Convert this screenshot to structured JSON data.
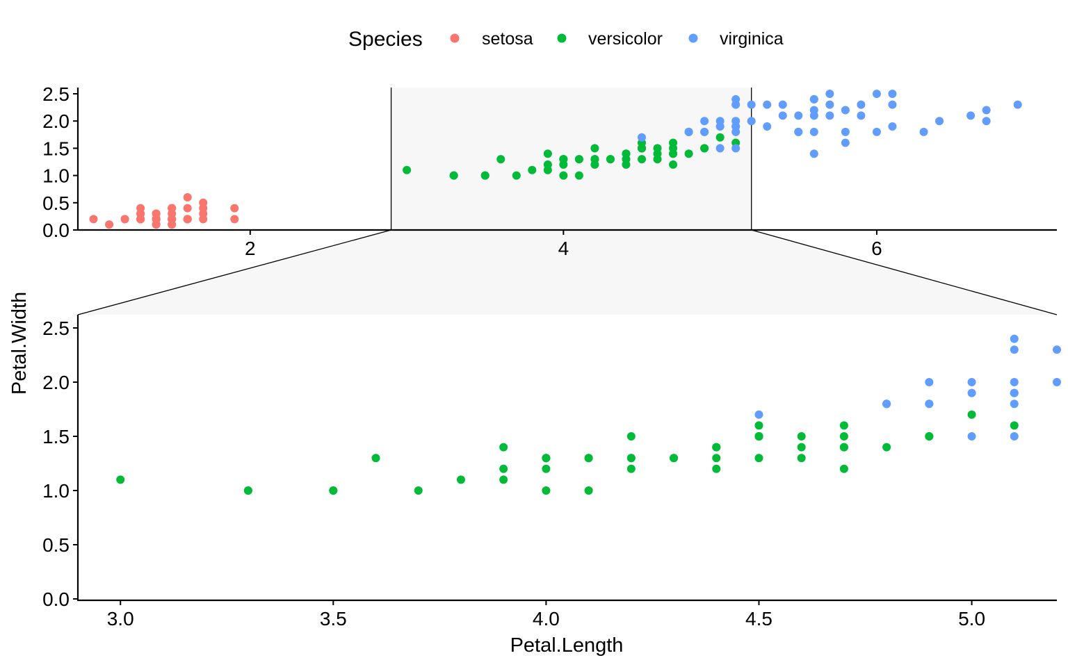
{
  "legend": {
    "title": "Species",
    "position": "top",
    "items": [
      {
        "label": "setosa",
        "color": "#F8766D"
      },
      {
        "label": "versicolor",
        "color": "#00BA38"
      },
      {
        "label": "virginica",
        "color": "#619CFF"
      }
    ]
  },
  "chart_data": {
    "type": "scatter",
    "title": "",
    "xlabel": "Petal.Length",
    "ylabel": "Petal.Width",
    "grid": false,
    "zoom_region": {
      "xlim": [
        2.9,
        5.2
      ]
    },
    "overview": {
      "xlim": [
        0.9,
        7.15
      ],
      "ylim": [
        0,
        2.5
      ],
      "xticks": [
        2,
        4,
        6
      ],
      "yticks": [
        "0.0",
        "0.5",
        "1.0",
        "1.5",
        "2.0",
        "2.5"
      ]
    },
    "detail": {
      "xlim": [
        2.9,
        5.2
      ],
      "ylim": [
        0,
        2.5
      ],
      "xticks": [
        "3.0",
        "3.5",
        "4.0",
        "4.5",
        "5.0"
      ],
      "yticks": [
        "0.0",
        "0.5",
        "1.0",
        "1.5",
        "2.0",
        "2.5"
      ]
    },
    "series": [
      {
        "name": "setosa",
        "color": "#F8766D",
        "points": [
          [
            1.4,
            0.2
          ],
          [
            1.4,
            0.2
          ],
          [
            1.3,
            0.2
          ],
          [
            1.5,
            0.2
          ],
          [
            1.4,
            0.2
          ],
          [
            1.7,
            0.4
          ],
          [
            1.4,
            0.3
          ],
          [
            1.5,
            0.2
          ],
          [
            1.4,
            0.2
          ],
          [
            1.5,
            0.1
          ],
          [
            1.5,
            0.2
          ],
          [
            1.6,
            0.2
          ],
          [
            1.4,
            0.1
          ],
          [
            1.1,
            0.1
          ],
          [
            1.2,
            0.2
          ],
          [
            1.5,
            0.4
          ],
          [
            1.3,
            0.4
          ],
          [
            1.4,
            0.3
          ],
          [
            1.7,
            0.3
          ],
          [
            1.5,
            0.3
          ],
          [
            1.7,
            0.2
          ],
          [
            1.5,
            0.4
          ],
          [
            1.0,
            0.2
          ],
          [
            1.7,
            0.5
          ],
          [
            1.9,
            0.2
          ],
          [
            1.6,
            0.2
          ],
          [
            1.6,
            0.4
          ],
          [
            1.5,
            0.2
          ],
          [
            1.4,
            0.2
          ],
          [
            1.6,
            0.2
          ],
          [
            1.6,
            0.2
          ],
          [
            1.5,
            0.4
          ],
          [
            1.5,
            0.1
          ],
          [
            1.4,
            0.2
          ],
          [
            1.5,
            0.2
          ],
          [
            1.2,
            0.2
          ],
          [
            1.3,
            0.2
          ],
          [
            1.4,
            0.1
          ],
          [
            1.3,
            0.2
          ],
          [
            1.5,
            0.2
          ],
          [
            1.3,
            0.3
          ],
          [
            1.3,
            0.3
          ],
          [
            1.3,
            0.2
          ],
          [
            1.6,
            0.6
          ],
          [
            1.9,
            0.4
          ],
          [
            1.4,
            0.3
          ],
          [
            1.6,
            0.2
          ],
          [
            1.4,
            0.2
          ],
          [
            1.5,
            0.2
          ],
          [
            1.4,
            0.2
          ]
        ]
      },
      {
        "name": "versicolor",
        "color": "#00BA38",
        "points": [
          [
            4.7,
            1.4
          ],
          [
            4.5,
            1.5
          ],
          [
            4.9,
            1.5
          ],
          [
            4.0,
            1.3
          ],
          [
            4.6,
            1.5
          ],
          [
            4.5,
            1.3
          ],
          [
            4.7,
            1.6
          ],
          [
            3.3,
            1.0
          ],
          [
            4.6,
            1.3
          ],
          [
            3.9,
            1.4
          ],
          [
            3.5,
            1.0
          ],
          [
            4.2,
            1.5
          ],
          [
            4.0,
            1.0
          ],
          [
            4.7,
            1.4
          ],
          [
            3.6,
            1.3
          ],
          [
            4.4,
            1.4
          ],
          [
            4.5,
            1.5
          ],
          [
            4.1,
            1.0
          ],
          [
            4.5,
            1.5
          ],
          [
            3.9,
            1.1
          ],
          [
            4.8,
            1.8
          ],
          [
            4.0,
            1.3
          ],
          [
            4.9,
            1.5
          ],
          [
            4.7,
            1.2
          ],
          [
            4.3,
            1.3
          ],
          [
            4.4,
            1.4
          ],
          [
            4.8,
            1.4
          ],
          [
            5.0,
            1.7
          ],
          [
            4.5,
            1.5
          ],
          [
            3.5,
            1.0
          ],
          [
            3.8,
            1.1
          ],
          [
            3.7,
            1.0
          ],
          [
            3.9,
            1.2
          ],
          [
            5.1,
            1.6
          ],
          [
            4.5,
            1.5
          ],
          [
            4.5,
            1.6
          ],
          [
            4.7,
            1.5
          ],
          [
            4.4,
            1.3
          ],
          [
            4.1,
            1.3
          ],
          [
            4.0,
            1.3
          ],
          [
            4.4,
            1.2
          ],
          [
            4.6,
            1.4
          ],
          [
            4.0,
            1.2
          ],
          [
            3.3,
            1.0
          ],
          [
            4.2,
            1.3
          ],
          [
            4.2,
            1.2
          ],
          [
            4.2,
            1.3
          ],
          [
            4.3,
            1.3
          ],
          [
            3.0,
            1.1
          ],
          [
            4.1,
            1.3
          ]
        ]
      },
      {
        "name": "virginica",
        "color": "#619CFF",
        "points": [
          [
            6.0,
            2.5
          ],
          [
            5.1,
            1.9
          ],
          [
            5.9,
            2.1
          ],
          [
            5.6,
            1.8
          ],
          [
            5.8,
            2.2
          ],
          [
            6.6,
            2.1
          ],
          [
            4.5,
            1.7
          ],
          [
            6.3,
            1.8
          ],
          [
            5.8,
            1.8
          ],
          [
            6.1,
            2.5
          ],
          [
            5.1,
            2.0
          ],
          [
            5.3,
            1.9
          ],
          [
            5.5,
            2.1
          ],
          [
            5.0,
            2.0
          ],
          [
            5.1,
            2.4
          ],
          [
            5.3,
            2.3
          ],
          [
            5.5,
            1.8
          ],
          [
            6.7,
            2.2
          ],
          [
            6.9,
            2.3
          ],
          [
            5.0,
            1.5
          ],
          [
            5.7,
            2.3
          ],
          [
            4.9,
            2.0
          ],
          [
            6.7,
            2.0
          ],
          [
            4.9,
            1.8
          ],
          [
            5.7,
            2.1
          ],
          [
            6.0,
            1.8
          ],
          [
            4.8,
            1.8
          ],
          [
            4.9,
            1.8
          ],
          [
            5.6,
            2.1
          ],
          [
            5.8,
            1.6
          ],
          [
            6.1,
            1.9
          ],
          [
            6.4,
            2.0
          ],
          [
            5.6,
            2.2
          ],
          [
            5.1,
            1.5
          ],
          [
            5.6,
            1.4
          ],
          [
            6.1,
            2.3
          ],
          [
            5.6,
            2.4
          ],
          [
            5.5,
            1.8
          ],
          [
            4.8,
            1.8
          ],
          [
            5.4,
            2.1
          ],
          [
            5.6,
            2.4
          ],
          [
            5.1,
            2.3
          ],
          [
            5.1,
            1.9
          ],
          [
            5.9,
            2.3
          ],
          [
            5.7,
            2.5
          ],
          [
            5.2,
            2.3
          ],
          [
            5.0,
            1.9
          ],
          [
            5.2,
            2.0
          ],
          [
            5.4,
            2.3
          ],
          [
            5.1,
            1.8
          ]
        ]
      }
    ]
  }
}
